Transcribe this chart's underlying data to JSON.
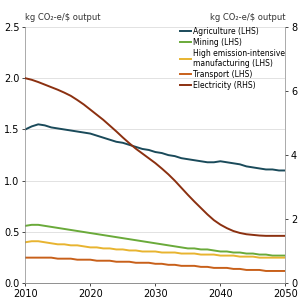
{
  "title_left": "kg CO₂-e/$ output",
  "title_right": "kg CO₂-e/$ output",
  "xlim": [
    2010,
    2050
  ],
  "ylim_left": [
    0,
    2.5
  ],
  "ylim_right": [
    0,
    8
  ],
  "yticks_left": [
    0.0,
    0.5,
    1.0,
    1.5,
    2.0,
    2.5
  ],
  "yticks_right": [
    0,
    2,
    4,
    6,
    8
  ],
  "xticks": [
    2010,
    2020,
    2030,
    2040,
    2050
  ],
  "lines": {
    "Agriculture": {
      "color": "#1a4a5a",
      "axis": "left",
      "x": [
        2010,
        2011,
        2012,
        2013,
        2014,
        2015,
        2016,
        2017,
        2018,
        2019,
        2020,
        2021,
        2022,
        2023,
        2024,
        2025,
        2026,
        2027,
        2028,
        2029,
        2030,
        2031,
        2032,
        2033,
        2034,
        2035,
        2036,
        2037,
        2038,
        2039,
        2040,
        2041,
        2042,
        2043,
        2044,
        2045,
        2046,
        2047,
        2048,
        2049,
        2050
      ],
      "y": [
        1.5,
        1.53,
        1.55,
        1.54,
        1.52,
        1.51,
        1.5,
        1.49,
        1.48,
        1.47,
        1.46,
        1.44,
        1.42,
        1.4,
        1.38,
        1.37,
        1.35,
        1.33,
        1.31,
        1.3,
        1.28,
        1.27,
        1.25,
        1.24,
        1.22,
        1.21,
        1.2,
        1.19,
        1.18,
        1.18,
        1.19,
        1.18,
        1.17,
        1.16,
        1.14,
        1.13,
        1.12,
        1.11,
        1.11,
        1.1,
        1.1
      ]
    },
    "Mining": {
      "color": "#6aaa3a",
      "axis": "left",
      "x": [
        2010,
        2011,
        2012,
        2013,
        2014,
        2015,
        2016,
        2017,
        2018,
        2019,
        2020,
        2021,
        2022,
        2023,
        2024,
        2025,
        2026,
        2027,
        2028,
        2029,
        2030,
        2031,
        2032,
        2033,
        2034,
        2035,
        2036,
        2037,
        2038,
        2039,
        2040,
        2041,
        2042,
        2043,
        2044,
        2045,
        2046,
        2047,
        2048,
        2049,
        2050
      ],
      "y": [
        0.56,
        0.57,
        0.57,
        0.56,
        0.55,
        0.54,
        0.53,
        0.52,
        0.51,
        0.5,
        0.49,
        0.48,
        0.47,
        0.46,
        0.45,
        0.44,
        0.43,
        0.42,
        0.41,
        0.4,
        0.39,
        0.38,
        0.37,
        0.36,
        0.35,
        0.34,
        0.34,
        0.33,
        0.33,
        0.32,
        0.31,
        0.31,
        0.3,
        0.3,
        0.29,
        0.29,
        0.28,
        0.28,
        0.27,
        0.27,
        0.27
      ]
    },
    "High emission-intensive manufacturing": {
      "color": "#e8b430",
      "axis": "left",
      "x": [
        2010,
        2011,
        2012,
        2013,
        2014,
        2015,
        2016,
        2017,
        2018,
        2019,
        2020,
        2021,
        2022,
        2023,
        2024,
        2025,
        2026,
        2027,
        2028,
        2029,
        2030,
        2031,
        2032,
        2033,
        2034,
        2035,
        2036,
        2037,
        2038,
        2039,
        2040,
        2041,
        2042,
        2043,
        2044,
        2045,
        2046,
        2047,
        2048,
        2049,
        2050
      ],
      "y": [
        0.4,
        0.41,
        0.41,
        0.4,
        0.39,
        0.38,
        0.38,
        0.37,
        0.37,
        0.36,
        0.35,
        0.35,
        0.34,
        0.34,
        0.33,
        0.33,
        0.32,
        0.32,
        0.31,
        0.31,
        0.31,
        0.3,
        0.3,
        0.3,
        0.29,
        0.29,
        0.29,
        0.28,
        0.28,
        0.28,
        0.27,
        0.27,
        0.27,
        0.26,
        0.26,
        0.26,
        0.25,
        0.25,
        0.25,
        0.25,
        0.25
      ]
    },
    "Transport": {
      "color": "#c8601a",
      "axis": "left",
      "x": [
        2010,
        2011,
        2012,
        2013,
        2014,
        2015,
        2016,
        2017,
        2018,
        2019,
        2020,
        2021,
        2022,
        2023,
        2024,
        2025,
        2026,
        2027,
        2028,
        2029,
        2030,
        2031,
        2032,
        2033,
        2034,
        2035,
        2036,
        2037,
        2038,
        2039,
        2040,
        2041,
        2042,
        2043,
        2044,
        2045,
        2046,
        2047,
        2048,
        2049,
        2050
      ],
      "y": [
        0.25,
        0.25,
        0.25,
        0.25,
        0.25,
        0.24,
        0.24,
        0.24,
        0.23,
        0.23,
        0.23,
        0.22,
        0.22,
        0.22,
        0.21,
        0.21,
        0.21,
        0.2,
        0.2,
        0.2,
        0.19,
        0.19,
        0.18,
        0.18,
        0.17,
        0.17,
        0.17,
        0.16,
        0.16,
        0.15,
        0.15,
        0.15,
        0.14,
        0.14,
        0.13,
        0.13,
        0.13,
        0.12,
        0.12,
        0.12,
        0.12
      ]
    },
    "Electricity": {
      "color": "#8b3010",
      "axis": "right",
      "x": [
        2010,
        2011,
        2012,
        2013,
        2014,
        2015,
        2016,
        2017,
        2018,
        2019,
        2020,
        2021,
        2022,
        2023,
        2024,
        2025,
        2026,
        2027,
        2028,
        2029,
        2030,
        2031,
        2032,
        2033,
        2034,
        2035,
        2036,
        2037,
        2038,
        2039,
        2040,
        2041,
        2042,
        2043,
        2044,
        2045,
        2046,
        2047,
        2048,
        2049,
        2050
      ],
      "y": [
        6.4,
        6.35,
        6.28,
        6.2,
        6.12,
        6.04,
        5.95,
        5.85,
        5.72,
        5.58,
        5.42,
        5.26,
        5.1,
        4.92,
        4.74,
        4.55,
        4.37,
        4.2,
        4.05,
        3.9,
        3.75,
        3.58,
        3.4,
        3.2,
        2.98,
        2.76,
        2.55,
        2.35,
        2.15,
        1.97,
        1.83,
        1.72,
        1.63,
        1.57,
        1.53,
        1.51,
        1.49,
        1.48,
        1.48,
        1.48,
        1.48
      ]
    }
  },
  "legend": [
    {
      "label": "Agriculture (LHS)",
      "color": "#1a4a5a"
    },
    {
      "label": "Mining (LHS)",
      "color": "#6aaa3a"
    },
    {
      "label": "High emission-intensive\nmanufacturing (LHS)",
      "color": "#e8b430"
    },
    {
      "label": "Transport (LHS)",
      "color": "#c8601a"
    },
    {
      "label": "Electricity (RHS)",
      "color": "#8b3010"
    }
  ],
  "background_color": "#ffffff",
  "linewidth": 1.4
}
